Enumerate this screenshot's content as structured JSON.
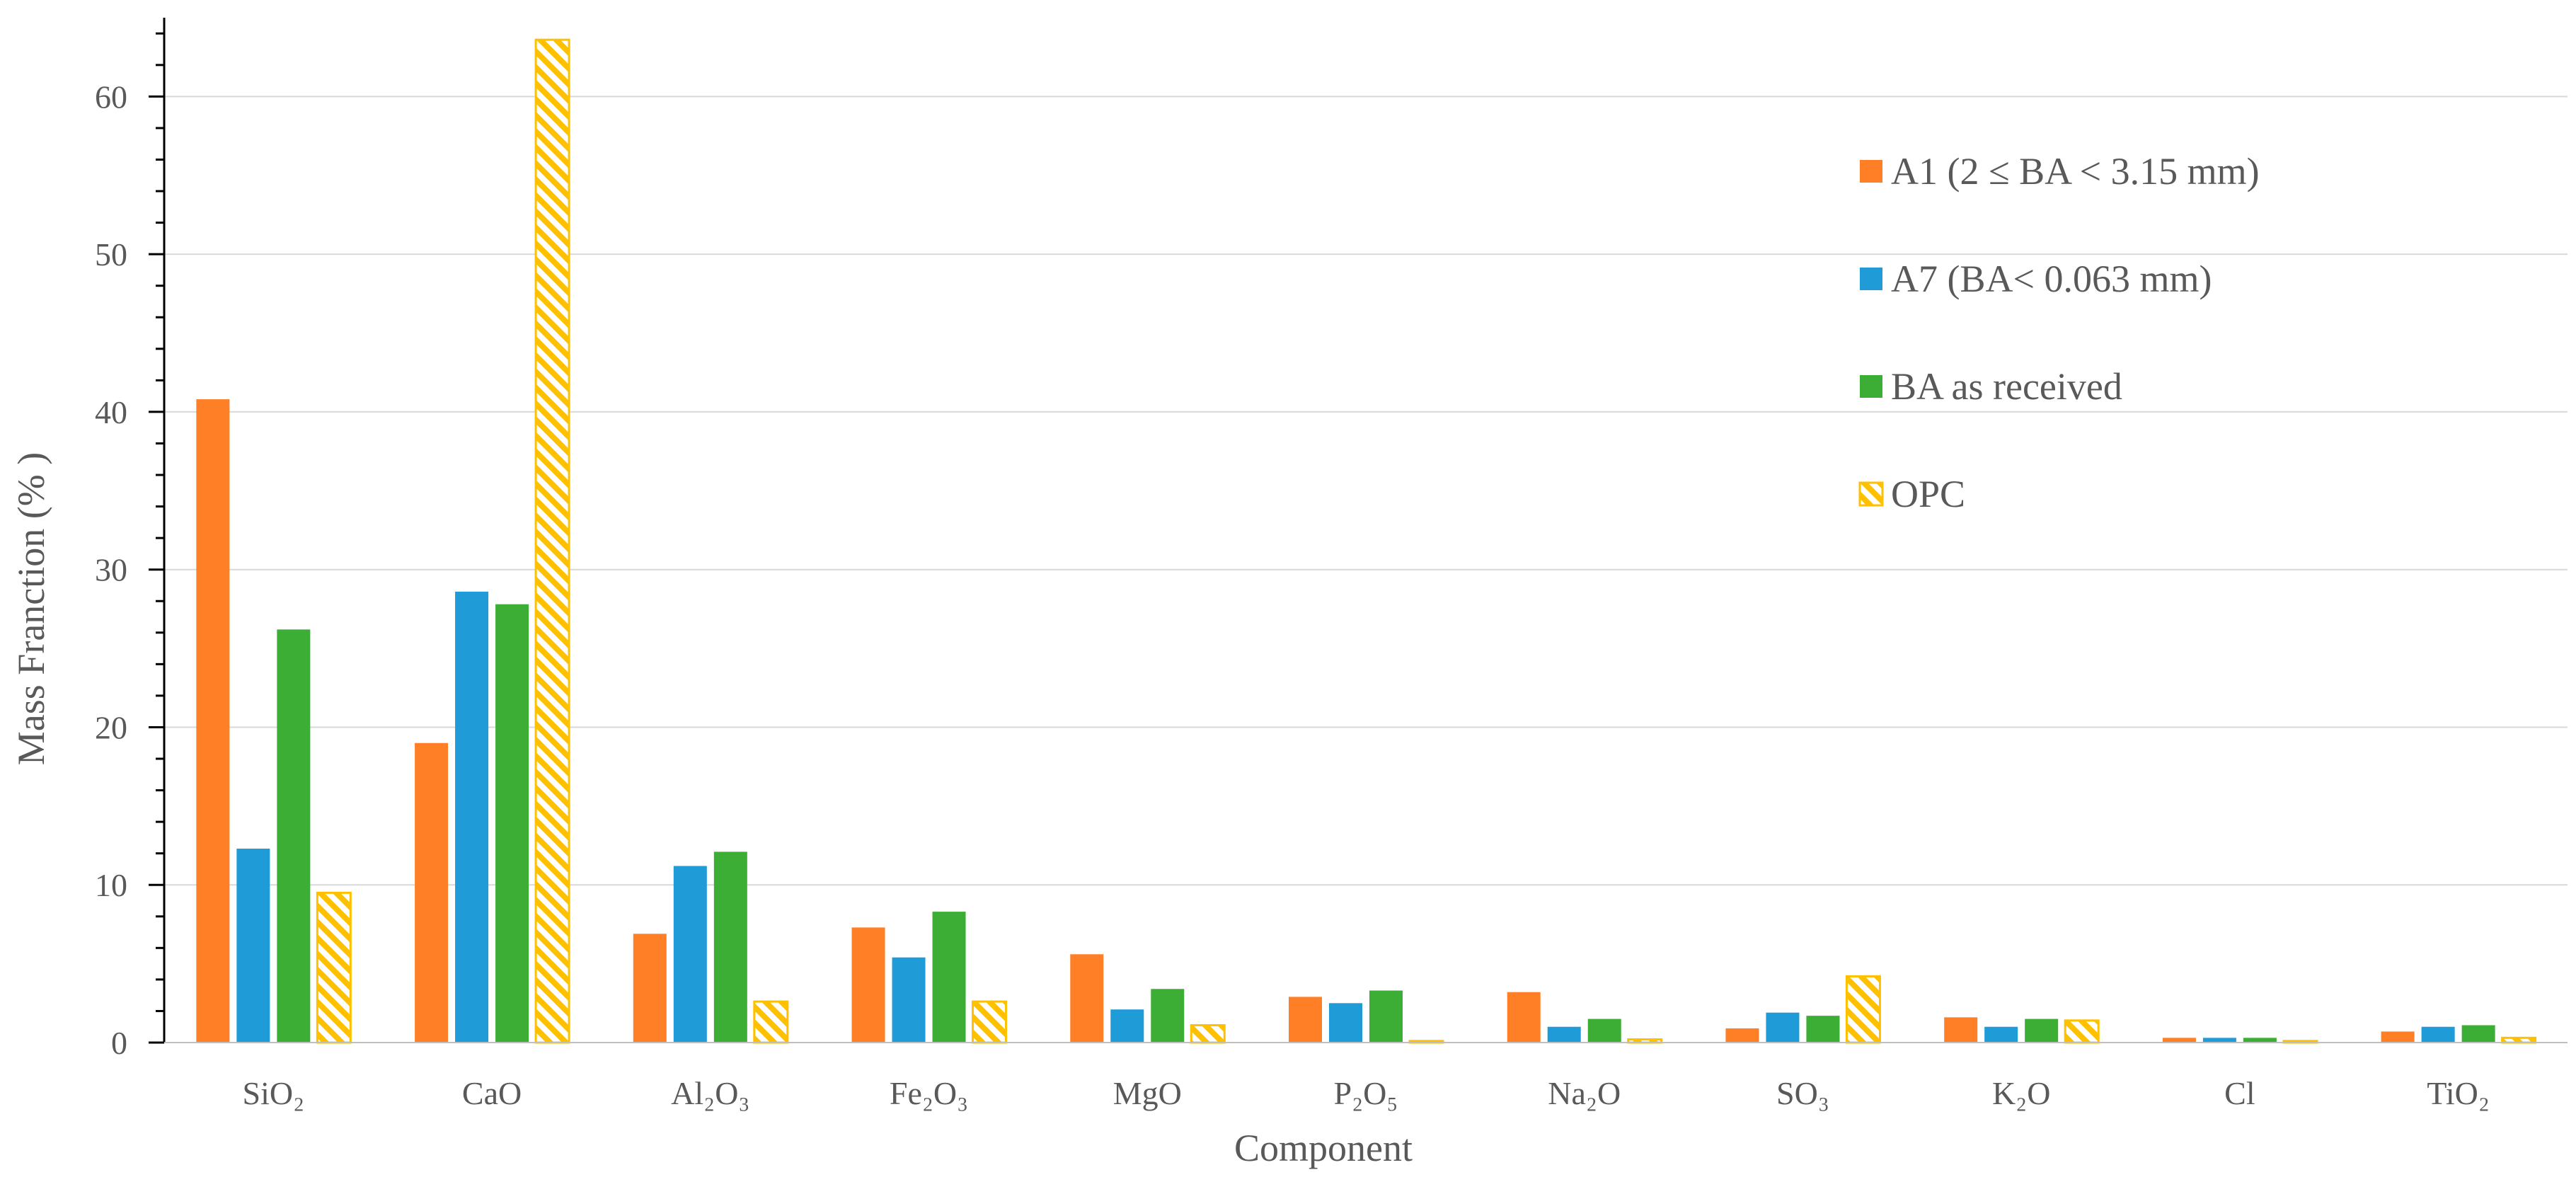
{
  "chart_data": {
    "type": "bar",
    "categories": [
      "SiO₂",
      "CaO",
      "Al₂O₃",
      "Fe₂O₃",
      "MgO",
      "P₂O₅",
      "Na₂O",
      "SO₃",
      "K₂O",
      "Cl",
      "TiO₂"
    ],
    "series": [
      {
        "name": "A1 (2 ≤ BA < 3.15 mm)",
        "color": "#FF7F27",
        "pattern": "solid",
        "values": [
          40.8,
          19.0,
          6.9,
          7.3,
          5.6,
          2.9,
          3.2,
          0.9,
          1.6,
          0.3,
          0.7
        ]
      },
      {
        "name": "A7 (BA< 0.063 mm)",
        "color": "#1F9BD7",
        "pattern": "solid",
        "values": [
          12.3,
          28.6,
          11.2,
          5.4,
          2.1,
          2.5,
          1.0,
          1.9,
          1.0,
          0.3,
          1.0
        ]
      },
      {
        "name": "BA as received",
        "color": "#3DAE35",
        "pattern": "solid",
        "values": [
          26.2,
          27.8,
          12.1,
          8.3,
          3.4,
          3.3,
          1.5,
          1.7,
          1.5,
          0.3,
          1.1
        ]
      },
      {
        "name": "OPC",
        "color": "#FFC000",
        "pattern": "hatched",
        "values": [
          9.5,
          63.6,
          2.6,
          2.6,
          1.1,
          0.1,
          0.2,
          4.2,
          1.4,
          0.1,
          0.3
        ]
      }
    ],
    "title": "",
    "xlabel": "Component",
    "ylabel": "Mass Franction (% )",
    "ylim": [
      0,
      65
    ],
    "yticks": [
      0,
      10,
      20,
      30,
      40,
      50,
      60
    ],
    "grid": true,
    "legend_position": "top-right"
  }
}
